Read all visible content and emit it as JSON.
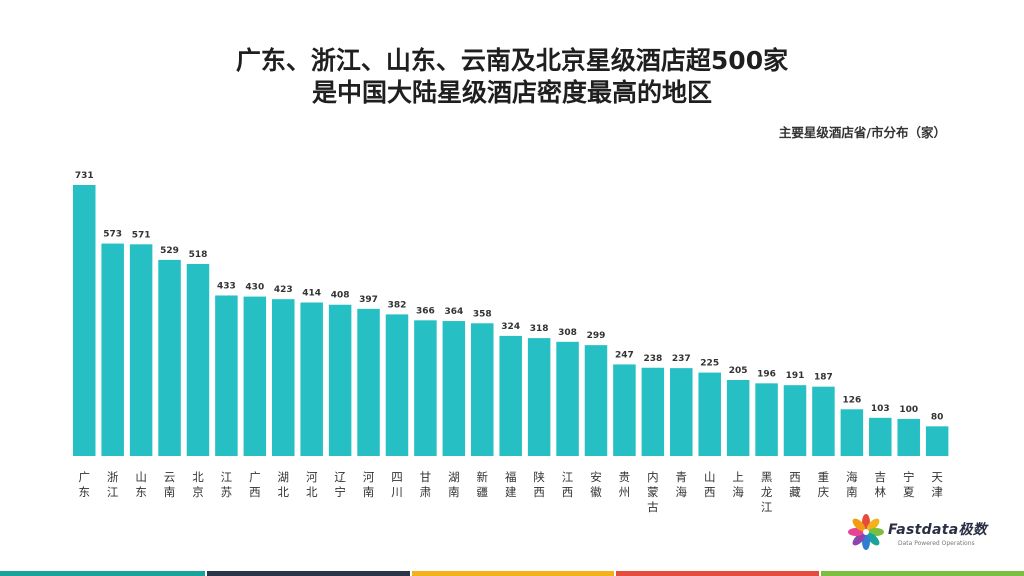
{
  "chart_data": {
    "type": "bar",
    "title_line1": "广东、浙江、山东、云南及北京星级酒店超500家",
    "title_line2": "是中国大陆星级酒店密度最高的地区",
    "subtitle": "主要星级酒店省/市分布（家）",
    "categories": [
      "广东",
      "浙江",
      "山东",
      "云南",
      "北京",
      "江苏",
      "广西",
      "湖北",
      "河北",
      "辽宁",
      "河南",
      "四川",
      "甘肃",
      "湖南",
      "新疆",
      "福建",
      "陕西",
      "江西",
      "安徽",
      "贵州",
      "内蒙古",
      "青海",
      "山西",
      "上海",
      "黑龙江",
      "西藏",
      "重庆",
      "海南",
      "吉林",
      "宁夏",
      "天津"
    ],
    "values": [
      731,
      573,
      571,
      529,
      518,
      433,
      430,
      423,
      414,
      408,
      397,
      382,
      366,
      364,
      358,
      324,
      318,
      308,
      299,
      247,
      238,
      237,
      225,
      205,
      196,
      191,
      187,
      126,
      103,
      100,
      80
    ],
    "ylim": [
      0,
      731
    ],
    "grid": false,
    "legend": "none",
    "bar_color": "#25bfc4"
  },
  "logo": {
    "name": "Fastdata极数",
    "tagline": "Data Powered Operations"
  },
  "footer_colors": [
    "#1aa39a",
    "#2b3548",
    "#f2b21b",
    "#e64b3c",
    "#7cbf3f"
  ]
}
